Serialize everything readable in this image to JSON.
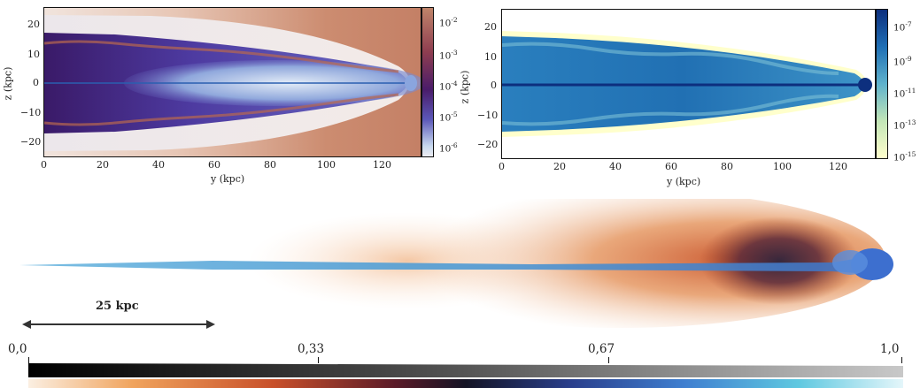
{
  "figure": {
    "top_left": {
      "xlabel": "y  (kpc)",
      "ylabel": "z  (kpc)",
      "x_ticks": [
        "0",
        "20",
        "40",
        "60",
        "80",
        "100",
        "120"
      ],
      "y_ticks": [
        "20",
        "10",
        "0",
        "−10",
        "−20"
      ],
      "colorbar": {
        "labels": [
          {
            "base": "10",
            "exp": "-2"
          },
          {
            "base": "10",
            "exp": "-3"
          },
          {
            "base": "10",
            "exp": "-4"
          },
          {
            "base": "10",
            "exp": "-5"
          },
          {
            "base": "10",
            "exp": "-6"
          }
        ],
        "colors": [
          "#c0846a",
          "#8d3d50",
          "#4a1c6a",
          "#5b57b8",
          "#c7d8ee"
        ]
      }
    },
    "top_right": {
      "xlabel": "y  (kpc)",
      "ylabel": "z  (kpc)",
      "x_ticks": [
        "0",
        "20",
        "40",
        "60",
        "80",
        "100",
        "120"
      ],
      "y_ticks": [
        "20",
        "10",
        "0",
        "−10",
        "−20"
      ],
      "colorbar": {
        "labels": [
          {
            "base": "10",
            "exp": "-7"
          },
          {
            "base": "10",
            "exp": "-9"
          },
          {
            "base": "10",
            "exp": "-11"
          },
          {
            "base": "10",
            "exp": "-13"
          },
          {
            "base": "10",
            "exp": "-15"
          }
        ],
        "colors": [
          "#0d2f7e",
          "#1f6fb5",
          "#5fb2cc",
          "#c3e6b7",
          "#ffffcc"
        ]
      }
    },
    "render": {
      "scale_label": "25 kpc"
    },
    "bottom_bar": {
      "ticks": [
        "0,0",
        "0,33",
        "0,67",
        "1,0"
      ]
    }
  }
}
